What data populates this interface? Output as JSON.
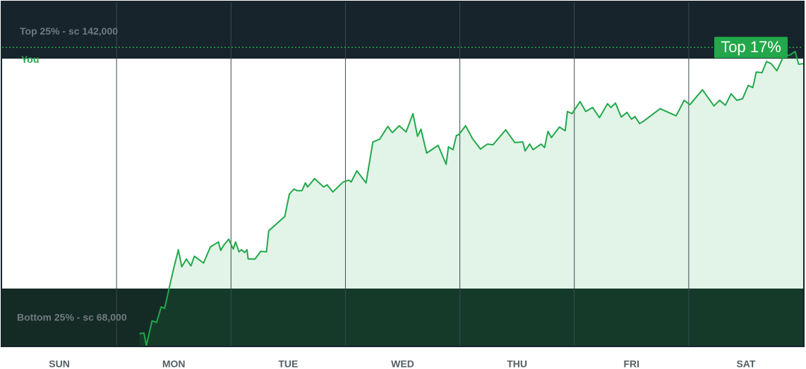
{
  "chart_data": {
    "type": "line",
    "categories": [
      "SUN",
      "MON",
      "TUE",
      "WED",
      "THU",
      "FRI",
      "SAT"
    ],
    "xlim": [
      0,
      7
    ],
    "ylim": [
      49600,
      160200
    ],
    "bands": [
      {
        "label": "Top 25% - sc 142,000",
        "value": 142000,
        "side": "top"
      },
      {
        "label": "Bottom 25% - sc 68,000",
        "value": 68000,
        "side": "bottom"
      }
    ],
    "you_line": 145600,
    "badge": "Top 17%",
    "x": [
      1.2,
      1.24,
      1.26,
      1.31,
      1.35,
      1.39,
      1.42,
      1.46,
      1.5,
      1.54,
      1.57,
      1.61,
      1.65,
      1.68,
      1.76,
      1.82,
      1.89,
      1.91,
      1.94,
      1.98,
      2.02,
      2.04,
      2.07,
      2.09,
      2.12,
      2.14,
      2.15,
      2.21,
      2.26,
      2.31,
      2.33,
      2.47,
      2.51,
      2.55,
      2.58,
      2.62,
      2.65,
      2.67,
      2.73,
      2.81,
      2.84,
      2.89,
      2.98,
      3.03,
      3.05,
      3.1,
      3.18,
      3.24,
      3.3,
      3.37,
      3.41,
      3.47,
      3.53,
      3.59,
      3.63,
      3.66,
      3.71,
      3.81,
      3.88,
      3.9,
      3.94,
      3.97,
      3.99,
      4.05,
      4.11,
      4.18,
      4.24,
      4.29,
      4.4,
      4.48,
      4.55,
      4.57,
      4.61,
      4.64,
      4.71,
      4.74,
      4.77,
      4.8,
      4.87,
      4.92,
      4.94,
      4.98,
      5.05,
      5.1,
      5.16,
      5.22,
      5.29,
      5.32,
      5.36,
      5.41,
      5.46,
      5.5,
      5.53,
      5.57,
      5.61,
      5.75,
      5.89,
      5.96,
      6.01,
      6.12,
      6.22,
      6.27,
      6.32,
      6.37,
      6.42,
      6.47,
      6.52,
      6.56,
      6.59,
      6.64,
      6.68,
      6.72,
      6.77,
      6.83,
      6.88,
      6.93,
      6.96,
      7.0
    ],
    "series": [
      {
        "name": "You",
        "color": "#22a84a",
        "values": [
          53500,
          53700,
          49600,
          57600,
          57100,
          62100,
          61600,
          68200,
          74600,
          80500,
          75000,
          77500,
          75300,
          78400,
          76200,
          81400,
          83000,
          80300,
          82100,
          83900,
          80700,
          83000,
          79800,
          80500,
          79600,
          80500,
          77500,
          77500,
          80000,
          79800,
          86600,
          91200,
          98400,
          100000,
          99500,
          99500,
          102000,
          100700,
          103400,
          100700,
          101400,
          99100,
          102300,
          102900,
          102300,
          105900,
          102000,
          115200,
          116100,
          120200,
          118200,
          120400,
          118400,
          124300,
          117000,
          119300,
          111600,
          114100,
          108000,
          113600,
          112700,
          117300,
          117500,
          120400,
          116300,
          112900,
          114500,
          114300,
          119100,
          115000,
          115200,
          112300,
          114500,
          112700,
          114500,
          113400,
          118600,
          116600,
          120000,
          118800,
          125000,
          124300,
          128200,
          125000,
          126300,
          123000,
          127500,
          126300,
          127700,
          123200,
          124700,
          122500,
          123400,
          121100,
          122000,
          125900,
          123600,
          128600,
          127200,
          132000,
          126800,
          128600,
          127000,
          130700,
          128600,
          129100,
          133400,
          132700,
          137700,
          137500,
          141100,
          140400,
          138100,
          142900,
          143100,
          144300,
          140200,
          140400
        ]
      }
    ]
  }
}
